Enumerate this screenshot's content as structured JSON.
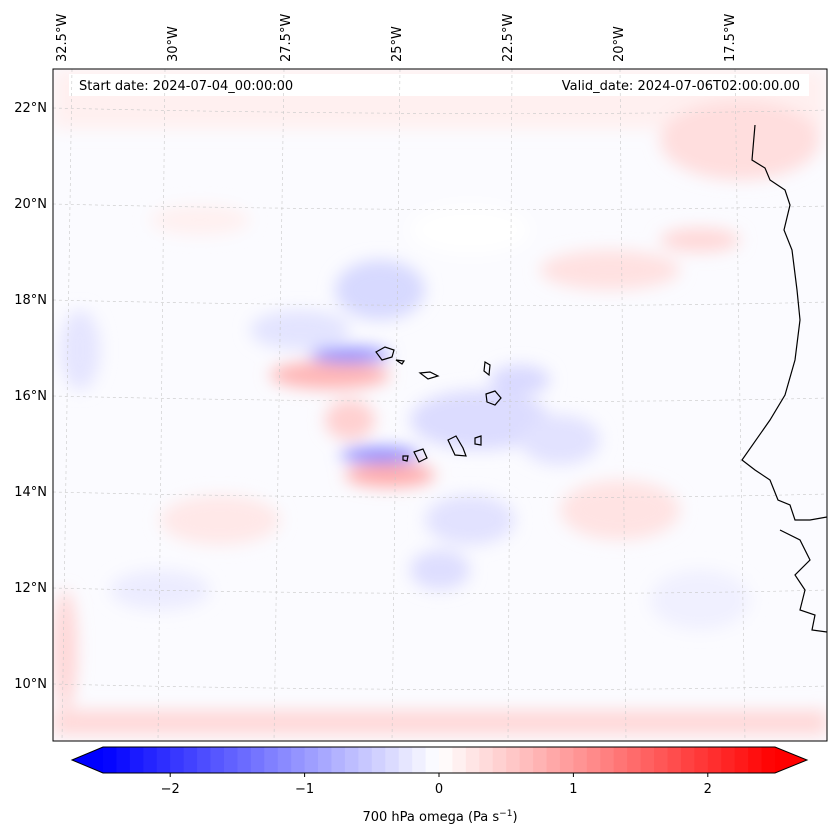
{
  "header": {
    "start_date": "Start date: 2024-07-04_00:00:00",
    "valid_date": "Valid_date: 2024-07-06T02:00:00.00"
  },
  "longitude_labels": [
    "32.5°W",
    "30°W",
    "27.5°W",
    "25°W",
    "22.5°W",
    "20°W",
    "17.5°W"
  ],
  "latitude_labels": [
    "22°N",
    "20°N",
    "18°N",
    "16°N",
    "14°N",
    "12°N",
    "10°N"
  ],
  "colorbar": {
    "label": "700 hPa omega (Pa s",
    "label_sup": "−1",
    "label_end": ")",
    "ticks": [
      "−2",
      "−1",
      "0",
      "1",
      "2"
    ],
    "tick_values": [
      -2,
      -1,
      0,
      1,
      2
    ],
    "range": [
      -2.5,
      2.5
    ],
    "low_color": "#0000ff",
    "mid_color": "#ffffff",
    "high_color": "#ff0000"
  }
}
